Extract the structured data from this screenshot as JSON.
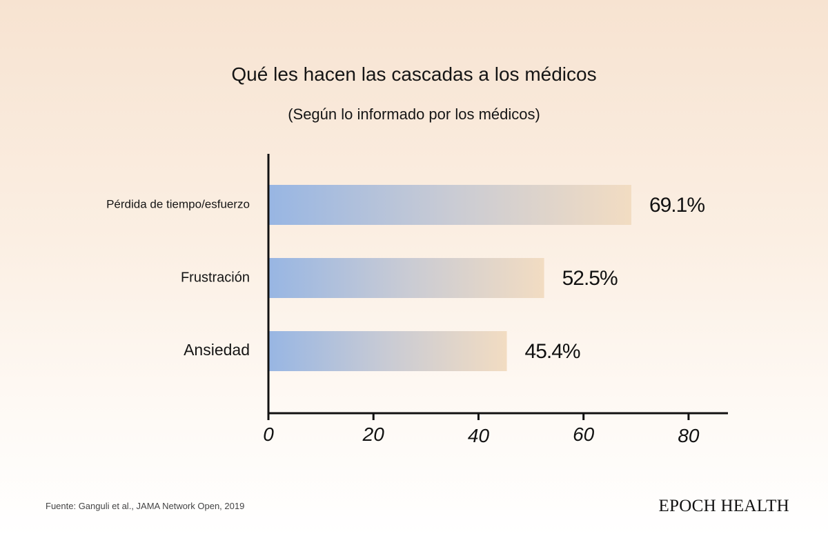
{
  "title": "Qué les hacen las cascadas a los médicos",
  "subtitle": "(Según lo informado por los médicos)",
  "source": "Fuente: Ganguli et al., JAMA Network Open, 2019",
  "brand": "EPOCH HEALTH",
  "colors": {
    "bar_start": "#98b6e3",
    "bar_mid": "#c9cbd4",
    "bar_end": "#f2dcc2",
    "axis": "#111111"
  },
  "chart_data": {
    "type": "bar",
    "orientation": "horizontal",
    "title": "Qué les hacen las cascadas a los médicos",
    "subtitle": "(Según lo informado por los médicos)",
    "categories": [
      "Pérdida de tiempo/esfuerzo",
      "Frustración",
      "Ansiedad"
    ],
    "values": [
      69.1,
      52.5,
      45.4
    ],
    "value_labels": [
      "69.1%",
      "52.5%",
      "45.4%"
    ],
    "xlabel": "",
    "ylabel": "",
    "xlim": [
      0,
      87.5
    ],
    "xticks": [
      0,
      20,
      40,
      60,
      80
    ],
    "xtick_labels": [
      "0",
      "20",
      "40",
      "60",
      "80"
    ],
    "grid": false,
    "legend": "none"
  }
}
